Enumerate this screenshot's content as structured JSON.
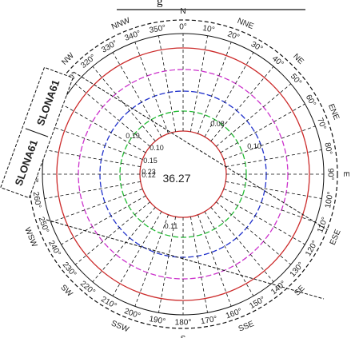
{
  "header": {
    "title_fragment": "g"
  },
  "legend": {
    "label_left": "SLONA61",
    "label_right": "SLONA61"
  },
  "calm": {
    "value": "36.27"
  },
  "ring_labels": [
    "0.08",
    "0.10",
    "0.19",
    "0.10",
    "0.15",
    "0.23",
    "0.12",
    "0.11"
  ],
  "compass": {
    "cardinals": [
      "N",
      "NNE",
      "NE",
      "ENE",
      "E",
      "ESE",
      "SE",
      "SSE",
      "S",
      "SSW",
      "SW",
      "WSW",
      "W",
      "WNW",
      "NW",
      "NNW"
    ],
    "degrees": [
      "0°",
      "10°",
      "20°",
      "30°",
      "40°",
      "50°",
      "60°",
      "70°",
      "80°",
      "90°",
      "100°",
      "110°",
      "120°",
      "130°",
      "140°",
      "150°",
      "160°",
      "170°",
      "180°",
      "190°",
      "200°",
      "210°",
      "220°",
      "230°",
      "240°",
      "250°",
      "260°",
      "270°",
      "280°",
      "290°",
      "300°",
      "310°",
      "320°",
      "330°",
      "340°",
      "350°"
    ]
  },
  "colors": {
    "ring_outer": "#cc2b2b",
    "ring_2": "#cc33cc",
    "ring_3": "#2233cc",
    "ring_4": "#22bb33",
    "ring_inner": "#cc2b2b",
    "line": "#111111"
  }
}
